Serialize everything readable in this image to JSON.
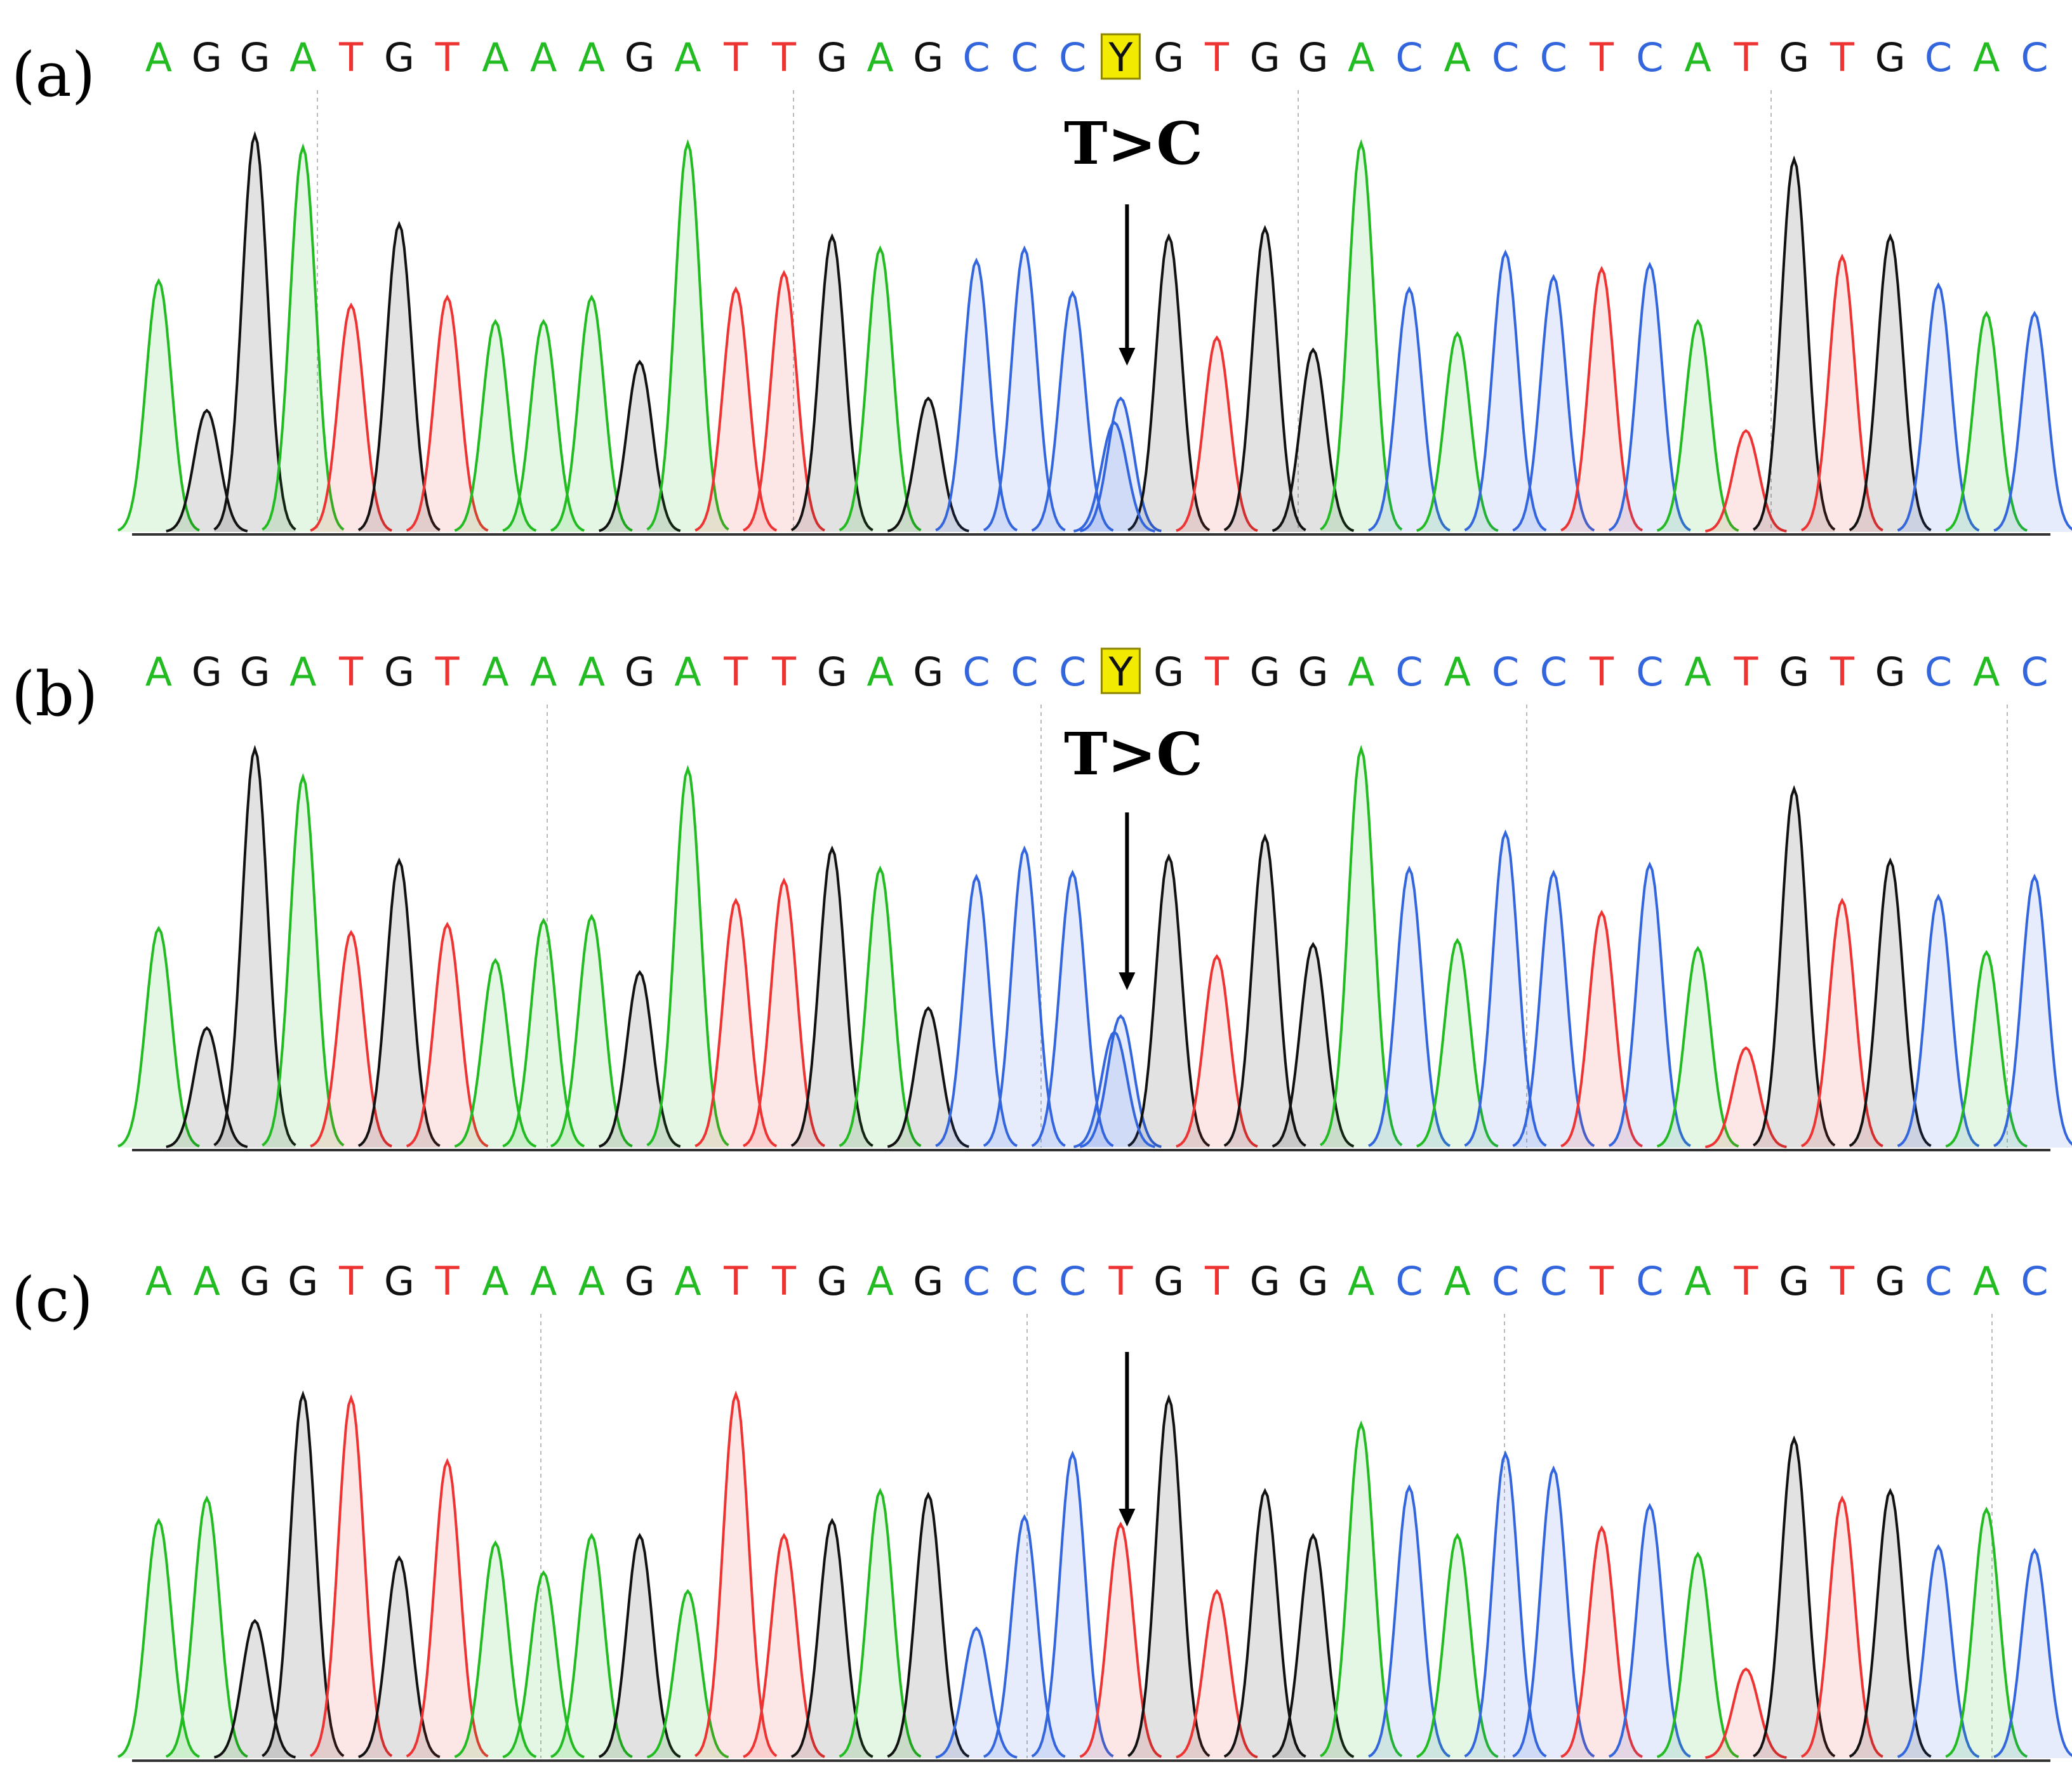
{
  "colors": {
    "A": "#22bb22",
    "C": "#3366dd",
    "G": "#111111",
    "T": "#ee3333",
    "Y": "#111111",
    "Y_highlight": "#f2ea00",
    "fill_A": "rgba(34,187,34,0.12)",
    "fill_C": "rgba(51,102,221,0.12)",
    "fill_G": "rgba(17,17,17,0.12)",
    "fill_T": "rgba(238,51,51,0.12)",
    "baseline": "#333333",
    "gridline": "#bbbbbb",
    "arrow": "#000000"
  },
  "panels": [
    {
      "label": "(a)",
      "sequence": "AGGATGTAAAGATTGAGCCCYGTGGACACCTCATGTGCAC",
      "mutation_label": "T>C",
      "highlight_index": 20,
      "peak_heights": [
        0.62,
        0.3,
        0.98,
        0.95,
        0.56,
        0.76,
        0.58,
        0.52,
        0.52,
        0.58,
        0.42,
        0.96,
        0.6,
        0.64,
        0.73,
        0.7,
        0.33,
        0.67,
        0.7,
        0.59,
        0.33,
        0.73,
        0.48,
        0.75,
        0.45,
        0.96,
        0.6,
        0.49,
        0.69,
        0.63,
        0.65,
        0.66,
        0.52,
        0.25,
        0.92,
        0.68,
        0.73,
        0.61,
        0.54,
        0.54
      ],
      "secondary_peak": {
        "index": 20,
        "base": "C",
        "height": 0.27
      }
    },
    {
      "label": "(b)",
      "sequence": "AGGATGTAAAGATTGAGCCCYGTGGACACCTCATGTGCAC",
      "mutation_label": "T>C",
      "highlight_index": 20,
      "peak_heights": [
        0.55,
        0.3,
        1.0,
        0.93,
        0.54,
        0.72,
        0.56,
        0.47,
        0.57,
        0.58,
        0.44,
        0.95,
        0.62,
        0.67,
        0.75,
        0.7,
        0.35,
        0.68,
        0.75,
        0.69,
        0.33,
        0.73,
        0.48,
        0.78,
        0.51,
        1.0,
        0.7,
        0.52,
        0.79,
        0.69,
        0.59,
        0.71,
        0.5,
        0.25,
        0.9,
        0.62,
        0.72,
        0.63,
        0.49,
        0.68
      ],
      "secondary_peak": {
        "index": 20,
        "base": "C",
        "height": 0.29
      }
    },
    {
      "label": "(c)",
      "sequence": "AAGGTGTAAAGATTGAGCCCTGTGGACACCTCATGTGCAC",
      "mutation_label": "",
      "highlight_index": -1,
      "peak_heights": [
        0.64,
        0.7,
        0.37,
        0.98,
        0.97,
        0.54,
        0.8,
        0.58,
        0.5,
        0.6,
        0.6,
        0.45,
        0.98,
        0.6,
        0.64,
        0.72,
        0.71,
        0.35,
        0.65,
        0.82,
        0.63,
        0.97,
        0.45,
        0.72,
        0.6,
        0.9,
        0.73,
        0.6,
        0.82,
        0.78,
        0.62,
        0.68,
        0.55,
        0.24,
        0.86,
        0.7,
        0.72,
        0.57,
        0.67,
        0.56
      ],
      "secondary_peak": null
    }
  ]
}
